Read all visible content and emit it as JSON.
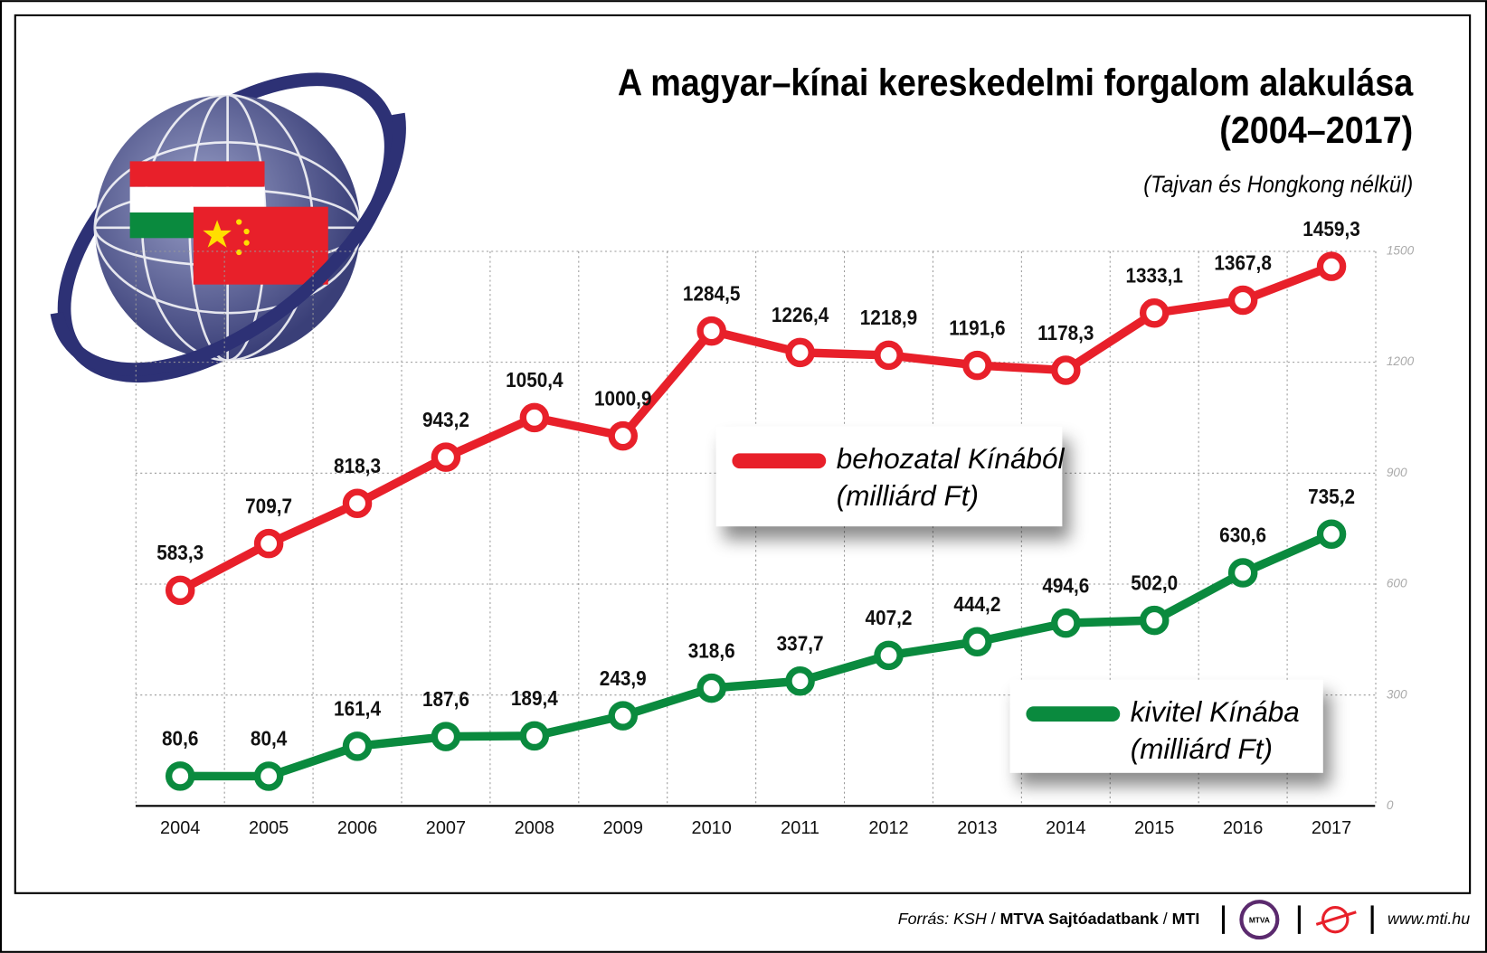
{
  "chart_data": {
    "type": "line",
    "title": "A magyar–kínai kereskedelmi forgalom alakulása",
    "title_years": "(2004–2017)",
    "subtitle": "(Tajvan és Hongkong nélkül)",
    "categories": [
      "2004",
      "2005",
      "2006",
      "2007",
      "2008",
      "2009",
      "2010",
      "2011",
      "2012",
      "2013",
      "2014",
      "2015",
      "2016",
      "2017"
    ],
    "series": [
      {
        "name": "behozatal Kínából",
        "unit": "(milliárd Ft)",
        "color": "#e8202a",
        "values": [
          583.3,
          709.7,
          818.3,
          943.2,
          1050.4,
          1000.9,
          1284.5,
          1226.4,
          1218.9,
          1191.6,
          1178.3,
          1333.1,
          1367.8,
          1459.3
        ],
        "value_labels": [
          "583,3",
          "709,7",
          "818,3",
          "943,2",
          "1050,4",
          "1000,9",
          "1284,5",
          "1226,4",
          "1218,9",
          "1191,6",
          "1178,3",
          "1333,1",
          "1367,8",
          "1459,3"
        ]
      },
      {
        "name": "kivitel Kínába",
        "unit": "(milliárd Ft)",
        "color": "#0a8a3e",
        "values": [
          80.6,
          80.4,
          161.4,
          187.6,
          189.4,
          243.9,
          318.6,
          337.7,
          407.2,
          444.2,
          494.6,
          502.0,
          630.6,
          735.2
        ],
        "value_labels": [
          "80,6",
          "80,4",
          "161,4",
          "187,6",
          "189,4",
          "243,9",
          "318,6",
          "337,7",
          "407,2",
          "444,2",
          "494,6",
          "502,0",
          "630,6",
          "735,2"
        ]
      }
    ],
    "ylim": [
      0,
      1500
    ],
    "yticks": [
      0,
      300,
      600,
      900,
      1200,
      1500
    ],
    "grid": true,
    "source": [
      "Forrás: KSH",
      "/",
      "MTVA Sajtóadatbank",
      "/",
      "MTI"
    ],
    "logo": "MTVA",
    "website": "www.mti.hu"
  }
}
